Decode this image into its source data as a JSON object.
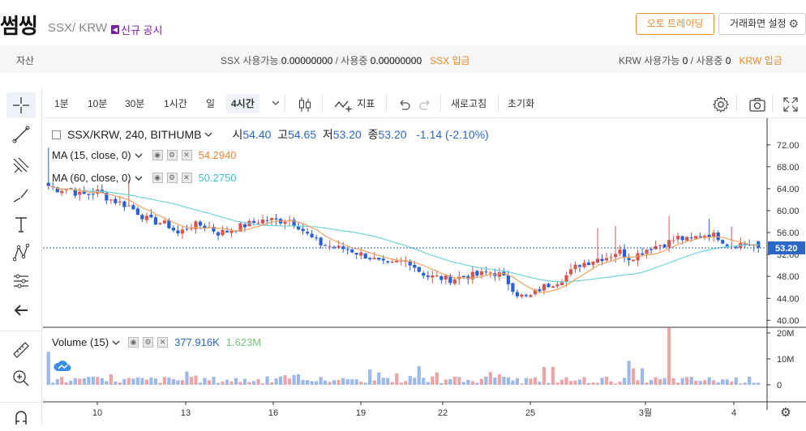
{
  "header": {
    "title": "썸씽",
    "pair": "SSX/ KRW",
    "notice": "신규 공시",
    "auto_trading": "오토 트레이딩",
    "screen_settings": "거래화면 설정"
  },
  "assets": {
    "label": "자산",
    "ssx_available_label": "SSX 사용가능",
    "ssx_available": "0.00000000",
    "ssx_inuse_label": "/ 사용중",
    "ssx_inuse": "0.00000000",
    "ssx_deposit": "SSX 입금",
    "krw_available_label": "KRW 사용가능",
    "krw_available": "0",
    "krw_inuse_label": "/ 사용중",
    "krw_inuse": "0",
    "krw_deposit": "KRW 입금"
  },
  "toolbar": {
    "intervals": [
      "1분",
      "10분",
      "30분",
      "1시간",
      "일",
      "4시간"
    ],
    "active_interval": "4시간",
    "indicators": "지표",
    "refresh": "새로고침",
    "reset": "초기화"
  },
  "legend": {
    "symbol": "SSX/KRW, 240, BITHUMB",
    "open_label": "시",
    "open": "54.40",
    "high_label": "고",
    "high": "54.65",
    "low_label": "저",
    "low": "53.20",
    "close_label": "종",
    "close": "53.20",
    "change": "-1.14 (-2.10%)",
    "ma15_label": "MA (15, close, 0)",
    "ma15_value": "54.2940",
    "ma60_label": "MA (60, close, 0)",
    "ma60_value": "50.2750",
    "volume_label": "Volume (15)",
    "volume_value": "377.916K",
    "volume_ma": "1.623M"
  },
  "colors": {
    "up": "#d9534f",
    "down": "#2b5fd9",
    "ma15": "#f0a25e",
    "ma60": "#6fd3dc",
    "last_price_bg": "#2b67c9",
    "accent": "#e8892c"
  },
  "chart_data": {
    "type": "candlestick",
    "price_axis_ticks": [
      "72.00",
      "68.00",
      "64.00",
      "60.00",
      "56.00",
      "52.00",
      "48.00",
      "44.00",
      "40.00"
    ],
    "ylim": [
      39.9,
      73.0
    ],
    "last_price": "53.20",
    "volume_axis_ticks": [
      "20M",
      "10M",
      "0"
    ],
    "x_ticks": [
      "10",
      "13",
      "16",
      "19",
      "22",
      "25",
      "3월",
      "4"
    ],
    "close_path": [
      64.5,
      63.8,
      64.2,
      62.9,
      63.0,
      63.5,
      62.2,
      61.5,
      60.9,
      59.6,
      58.2,
      57.9,
      57.3,
      55.7,
      57.2,
      57.4,
      57.0,
      55.9,
      56.3,
      57.0,
      57.5,
      58.1,
      58.4,
      58.1,
      58.5,
      57.2,
      55.4,
      54.0,
      53.6,
      53.1,
      53.0,
      52.2,
      51.6,
      50.6,
      49.9,
      50.6,
      51.0,
      49.1,
      48.0,
      47.8,
      47.4,
      47.8,
      48.1,
      48.2,
      48.8,
      48.5,
      46.9,
      44.6,
      44.0,
      45.6,
      46.5,
      47.2,
      48.4,
      50.2,
      50.7,
      51.3,
      51.6,
      52.7,
      51.4,
      52.1,
      53.2,
      53.7,
      54.2,
      55.1,
      54.5,
      55.4,
      55.7,
      55.2,
      53.8,
      53.9,
      54.0,
      53.2
    ],
    "ma15_last": 54.294,
    "ma60_last": 50.275
  }
}
